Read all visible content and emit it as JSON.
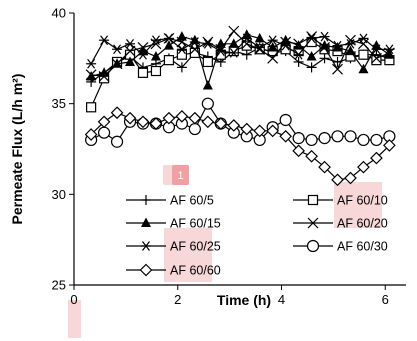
{
  "chart_data": {
    "type": "line",
    "xlabel": "Time (h)",
    "ylabel": "Permeate Flux (L/h m²)",
    "xlim": [
      0,
      6.4
    ],
    "ylim": [
      25,
      40
    ],
    "xticks": [
      "0",
      "2",
      "4",
      "6"
    ],
    "xtick_values": [
      0,
      2,
      4,
      6
    ],
    "yticks": [
      "25",
      "30",
      "35",
      "40"
    ],
    "ytick_values": [
      25,
      30,
      35,
      40
    ],
    "grid": false,
    "legend_position": "inside-bottom",
    "badge": "1",
    "series": [
      {
        "name": "AF 60/5",
        "marker": "plus",
        "x": [
          0.33,
          0.58,
          0.83,
          1.08,
          1.33,
          1.58,
          1.83,
          2.08,
          2.33,
          2.58,
          2.83,
          3.08,
          3.33,
          3.58,
          3.83,
          4.08,
          4.33,
          4.58,
          4.83,
          5.08,
          5.33,
          5.58,
          5.83,
          6.08
        ],
        "y": [
          36.2,
          36.7,
          37.3,
          37.6,
          37.0,
          37.2,
          37.5,
          37.0,
          37.8,
          37.6,
          37.3,
          37.9,
          37.7,
          38.1,
          37.8,
          37.9,
          37.3,
          37.0,
          37.5,
          37.3,
          37.5,
          37.7,
          37.7,
          37.5
        ]
      },
      {
        "name": "AF 60/10",
        "marker": "square",
        "x": [
          0.33,
          0.58,
          0.83,
          1.08,
          1.33,
          1.58,
          1.83,
          2.08,
          2.33,
          2.58,
          2.83,
          3.08,
          3.33,
          3.58,
          3.83,
          4.08,
          4.33,
          4.58,
          4.83,
          5.08,
          5.33,
          5.58,
          5.83,
          6.08
        ],
        "y": [
          34.8,
          36.4,
          37.3,
          37.7,
          36.7,
          36.8,
          37.4,
          37.7,
          37.8,
          37.3,
          37.7,
          37.9,
          38.2,
          38.0,
          37.9,
          38.0,
          37.9,
          38.4,
          38.0,
          37.9,
          37.6,
          37.7,
          37.4,
          37.4
        ]
      },
      {
        "name": "AF 60/15",
        "marker": "triangle",
        "x": [
          0.33,
          0.58,
          0.83,
          1.08,
          1.33,
          1.58,
          1.83,
          2.08,
          2.33,
          2.58,
          2.83,
          3.08,
          3.33,
          3.58,
          3.83,
          4.08,
          4.33,
          4.58,
          4.83,
          5.08,
          5.33,
          5.58,
          5.83,
          6.08
        ],
        "y": [
          36.5,
          36.7,
          37.2,
          37.3,
          37.9,
          37.6,
          38.2,
          38.7,
          38.5,
          36.0,
          38.3,
          38.3,
          38.8,
          38.6,
          38.1,
          38.5,
          38.2,
          37.6,
          38.2,
          38.1,
          37.9,
          36.9,
          38.2,
          37.7
        ]
      },
      {
        "name": "AF 60/20",
        "marker": "x",
        "x": [
          0.33,
          0.58,
          0.83,
          1.08,
          1.33,
          1.58,
          1.83,
          2.08,
          2.33,
          2.58,
          2.83,
          3.08,
          3.33,
          3.58,
          3.83,
          4.08,
          4.33,
          4.58,
          4.83,
          5.08,
          5.33,
          5.58,
          5.83,
          6.08
        ],
        "y": [
          36.6,
          36.5,
          37.2,
          37.9,
          38.1,
          38.3,
          38.6,
          38.4,
          38.0,
          38.4,
          38.0,
          39.0,
          38.3,
          38.0,
          37.5,
          38.4,
          38.3,
          38.7,
          38.1,
          36.9,
          38.5,
          38.3,
          37.5,
          37.8
        ]
      },
      {
        "name": "AF 60/25",
        "marker": "asterisk",
        "x": [
          0.33,
          0.58,
          0.83,
          1.08,
          1.33,
          1.58,
          1.83,
          2.08,
          2.33,
          2.58,
          2.83,
          3.08,
          3.33,
          3.58,
          3.83,
          4.08,
          4.33,
          4.58,
          4.83,
          5.08,
          5.33,
          5.58,
          5.83,
          6.08
        ],
        "y": [
          37.2,
          38.5,
          38.0,
          38.3,
          37.7,
          38.5,
          38.6,
          38.0,
          38.4,
          38.3,
          37.9,
          37.8,
          38.6,
          38.1,
          38.5,
          38.2,
          37.7,
          38.6,
          38.7,
          38.2,
          38.3,
          38.6,
          38.0,
          38.0
        ]
      },
      {
        "name": "AF 60/30",
        "marker": "circle",
        "x": [
          0.33,
          0.58,
          0.83,
          1.08,
          1.33,
          1.58,
          1.83,
          2.08,
          2.33,
          2.58,
          2.83,
          3.08,
          3.33,
          3.58,
          3.83,
          4.08,
          4.33,
          4.58,
          4.83,
          5.08,
          5.33,
          5.58,
          5.83,
          6.08
        ],
        "y": [
          33.0,
          33.4,
          32.9,
          34.0,
          33.9,
          33.9,
          33.7,
          33.9,
          33.6,
          35.0,
          33.9,
          33.4,
          33.2,
          33.0,
          33.7,
          34.1,
          33.1,
          33.0,
          33.1,
          33.2,
          33.2,
          33.0,
          33.0,
          33.2
        ]
      },
      {
        "name": "AF 60/60",
        "marker": "diamond",
        "x": [
          0.33,
          0.58,
          0.83,
          1.08,
          1.33,
          1.58,
          1.83,
          2.08,
          2.33,
          2.58,
          2.83,
          3.08,
          3.33,
          3.58,
          3.83,
          4.08,
          4.33,
          4.58,
          4.83,
          5.08,
          5.33,
          5.58,
          5.83,
          6.08
        ],
        "y": [
          33.3,
          34.0,
          34.5,
          34.2,
          34.0,
          33.9,
          34.2,
          34.3,
          34.2,
          34.0,
          33.9,
          33.8,
          33.6,
          33.5,
          33.5,
          33.2,
          32.4,
          32.1,
          31.5,
          30.8,
          30.9,
          31.5,
          32.0,
          32.7
        ]
      }
    ]
  }
}
